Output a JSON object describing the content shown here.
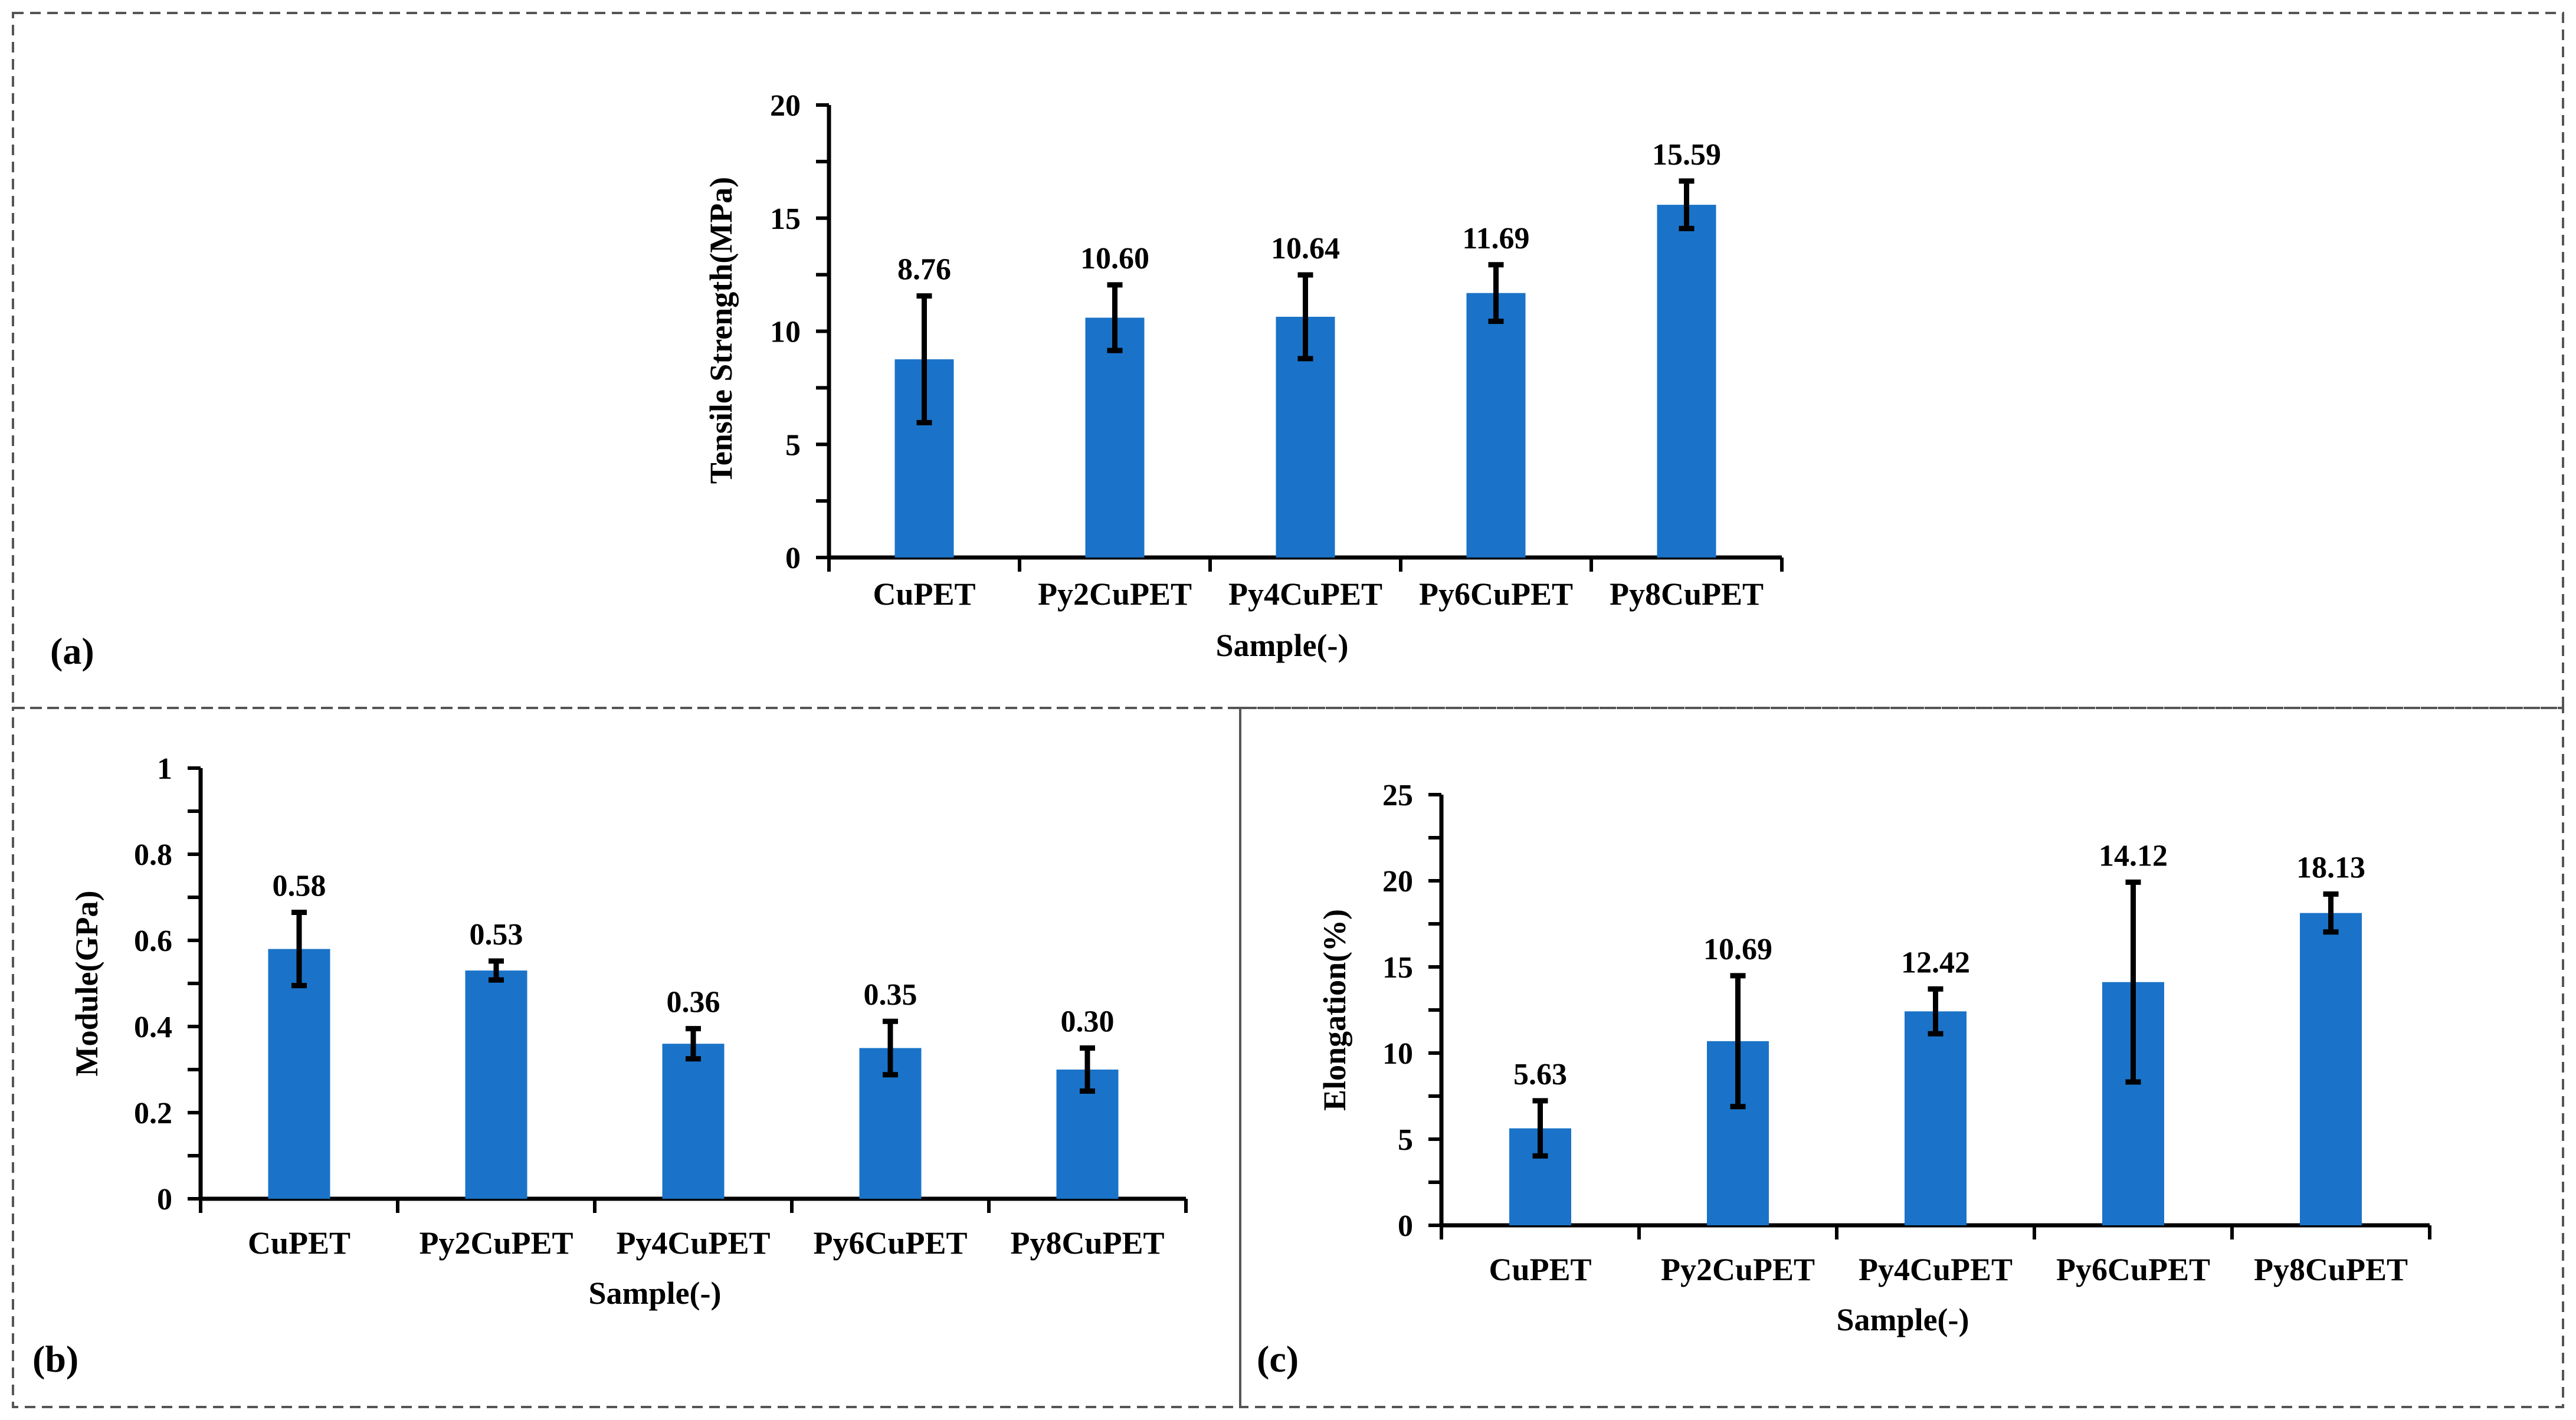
{
  "colors": {
    "bar": "#1a73c8",
    "axis": "#000000",
    "border": "#555555"
  },
  "chart_data": [
    {
      "panel": "(a)",
      "type": "bar",
      "categories": [
        "CuPET",
        "Py2CuPET",
        "Py4CuPET",
        "Py6CuPET",
        "Py8CuPET"
      ],
      "values": [
        8.76,
        10.6,
        10.64,
        11.69,
        15.59
      ],
      "value_labels": [
        "8.76",
        "10.60",
        "10.64",
        "11.69",
        "15.59"
      ],
      "errors": [
        2.8,
        1.45,
        1.85,
        1.25,
        1.05
      ],
      "xlabel": "Sample(-)",
      "ylabel": "Tensile Strength(MPa)",
      "ylim": [
        0,
        20
      ],
      "yticks": [
        0,
        5,
        10,
        15,
        20
      ],
      "ytick_labels": [
        "0",
        "5",
        "10",
        "15",
        "20"
      ],
      "minor_step": 2.5
    },
    {
      "panel": "(b)",
      "type": "bar",
      "categories": [
        "CuPET",
        "Py2CuPET",
        "Py4CuPET",
        "Py6CuPET",
        "Py8CuPET"
      ],
      "values": [
        0.58,
        0.53,
        0.36,
        0.35,
        0.3
      ],
      "value_labels": [
        "0.58",
        "0.53",
        "0.36",
        "0.35",
        "0.30"
      ],
      "errors": [
        0.085,
        0.022,
        0.035,
        0.062,
        0.05
      ],
      "xlabel": "Sample(-)",
      "ylabel": "Module(GPa)",
      "ylim": [
        0,
        1
      ],
      "yticks": [
        0,
        0.2,
        0.4,
        0.6,
        0.8,
        1
      ],
      "ytick_labels": [
        "0",
        "0.2",
        "0.4",
        "0.6",
        "0.8",
        "1"
      ],
      "minor_step": 0.1
    },
    {
      "panel": "(c)",
      "type": "bar",
      "categories": [
        "CuPET",
        "Py2CuPET",
        "Py4CuPET",
        "Py6CuPET",
        "Py8CuPET"
      ],
      "values": [
        5.63,
        10.69,
        12.42,
        14.12,
        18.13
      ],
      "value_labels": [
        "5.63",
        "10.69",
        "12.42",
        "14.12",
        "18.13"
      ],
      "errors": [
        1.6,
        3.8,
        1.3,
        5.8,
        1.1
      ],
      "xlabel": "Sample(-)",
      "ylabel": "Elongation(%)",
      "ylim": [
        0,
        25
      ],
      "yticks": [
        0,
        5,
        10,
        15,
        20,
        25
      ],
      "ytick_labels": [
        "0",
        "5",
        "10",
        "15",
        "20",
        "25"
      ],
      "minor_step": 2.5
    }
  ]
}
